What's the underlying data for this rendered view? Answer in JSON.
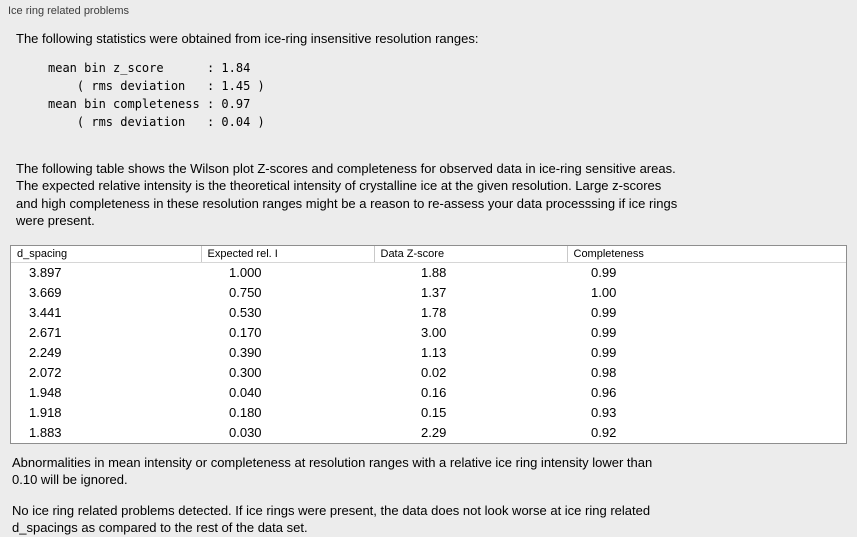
{
  "panel": {
    "title": "Ice ring related problems"
  },
  "intro_text": "The following statistics were obtained from ice-ring insensitive resolution ranges:",
  "stats_lines": [
    "mean bin z_score      : 1.84",
    "    ( rms deviation   : 1.45 )",
    "mean bin completeness : 0.97",
    "    ( rms deviation   : 0.04 )"
  ],
  "description_lines": [
    "The following table shows the Wilson plot Z-scores and completeness for observed data in ice-ring sensitive areas.",
    "The expected relative intensity is the theoretical intensity of crystalline ice at the given resolution. Large z-scores",
    "and high completeness in these resolution ranges might be a reason to re-assess your data processsing if ice rings",
    "were present."
  ],
  "table": {
    "columns": [
      {
        "id": "d-spacing",
        "label": "d_spacing"
      },
      {
        "id": "expected-rel-i",
        "label": "Expected rel. I"
      },
      {
        "id": "data-z-score",
        "label": "Data Z-score"
      },
      {
        "id": "completeness",
        "label": "Completeness"
      }
    ],
    "rows": [
      [
        "3.897",
        "1.000",
        "1.88",
        "0.99"
      ],
      [
        "3.669",
        "0.750",
        "1.37",
        "1.00"
      ],
      [
        "3.441",
        "0.530",
        "1.78",
        "0.99"
      ],
      [
        "2.671",
        "0.170",
        "3.00",
        "0.99"
      ],
      [
        "2.249",
        "0.390",
        "1.13",
        "0.99"
      ],
      [
        "2.072",
        "0.300",
        "0.02",
        "0.98"
      ],
      [
        "1.948",
        "0.040",
        "0.16",
        "0.96"
      ],
      [
        "1.918",
        "0.180",
        "0.15",
        "0.93"
      ],
      [
        "1.883",
        "0.030",
        "2.29",
        "0.92"
      ]
    ]
  },
  "notes": {
    "ignore_note_lines": [
      "Abnormalities in mean intensity or completeness at resolution ranges with a relative ice ring intensity lower than",
      "0.10 will be ignored."
    ],
    "conclusion_lines": [
      "No ice ring related problems detected. If ice rings were present, the data does not look worse at ice ring related",
      "d_spacings as compared to the rest of the data set."
    ]
  },
  "colors": {
    "background": "#ececec",
    "table_background": "#ffffff",
    "table_border": "#8e8e8e",
    "header_separator": "#c9c9c9",
    "text": "#000000",
    "title_text": "#3c3c3c"
  }
}
